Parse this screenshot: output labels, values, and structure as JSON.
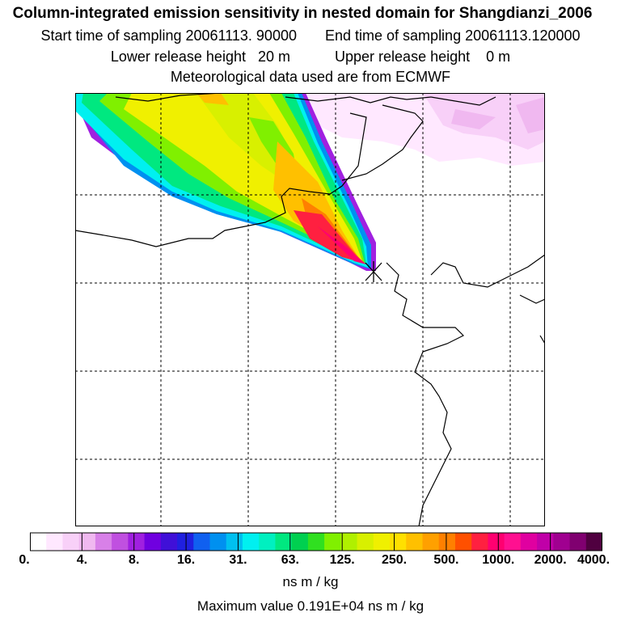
{
  "titles": {
    "main": "Column-integrated emission sensitivity in nested domain for Shangdianzi_2006",
    "start_sampling": "Start time of sampling 20061113. 90000",
    "end_sampling": "End time of sampling 20061113.120000",
    "lower_release": "Lower release height   20 m",
    "upper_release": "Upper release height    0 m",
    "met_data": "Meteorological data used are from ECMWF"
  },
  "map": {
    "station_marker": "release-point-cross-icon",
    "coastline_color": "#000000",
    "grid_color": "#000000"
  },
  "colorbar": {
    "colors": [
      "#ffffff",
      "#ffe8ff",
      "#f8d0f8",
      "#f0b8f0",
      "#d880e8",
      "#c050e0",
      "#a020e0",
      "#7000e0",
      "#4010d8",
      "#2020e0",
      "#1060f0",
      "#0090f0",
      "#00c0f0",
      "#00f0f0",
      "#00f0c0",
      "#00e880",
      "#00d050",
      "#30e020",
      "#80f000",
      "#b0f000",
      "#d8f000",
      "#f0f000",
      "#ffe000",
      "#ffc000",
      "#ffa000",
      "#ff8000",
      "#ff5000",
      "#ff2040",
      "#ff0070",
      "#ff1090",
      "#e000a0",
      "#c000a8",
      "#a00090",
      "#800070",
      "#500040"
    ],
    "tick_labels": [
      "0.",
      "4.",
      "8.",
      "16.",
      "31.",
      "63.",
      "125.",
      "250.",
      "500.",
      "1000.",
      "2000.",
      "4000."
    ],
    "units": "ns m / kg"
  },
  "max_value": "Maximum value  0.191E+04 ns m / kg"
}
